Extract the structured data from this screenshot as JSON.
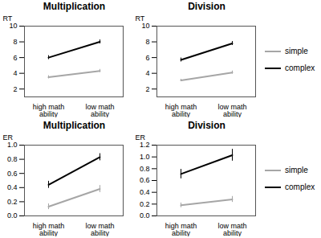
{
  "chart_data": [
    {
      "type": "line",
      "title": "Multiplication",
      "y_label": "RT",
      "categories": [
        "high math ability",
        "low math ability"
      ],
      "series": [
        {
          "name": "simple",
          "color": "#a6a6a6",
          "values": [
            3.5,
            4.3
          ],
          "errors": [
            0.2,
            0.2
          ]
        },
        {
          "name": "complex",
          "color": "#000000",
          "values": [
            6.0,
            8.0
          ],
          "errors": [
            0.25,
            0.25
          ]
        }
      ],
      "ylim": [
        1,
        10
      ],
      "yticks": [
        2,
        4,
        6,
        8,
        10
      ]
    },
    {
      "type": "line",
      "title": "Division",
      "y_label": "RT",
      "categories": [
        "high math ability",
        "low math ability"
      ],
      "series": [
        {
          "name": "simple",
          "color": "#a6a6a6",
          "values": [
            3.1,
            4.1
          ],
          "errors": [
            0.15,
            0.2
          ]
        },
        {
          "name": "complex",
          "color": "#000000",
          "values": [
            5.7,
            7.8
          ],
          "errors": [
            0.25,
            0.25
          ]
        }
      ],
      "ylim": [
        1,
        10
      ],
      "yticks": [
        2,
        4,
        6,
        8,
        10
      ],
      "legend": "right"
    },
    {
      "type": "line",
      "title": "Multiplication",
      "y_label": "ER",
      "categories": [
        "high math ability",
        "low math ability"
      ],
      "series": [
        {
          "name": "simple",
          "color": "#a6a6a6",
          "values": [
            0.13,
            0.38
          ],
          "errors": [
            0.04,
            0.05
          ]
        },
        {
          "name": "complex",
          "color": "#000000",
          "values": [
            0.44,
            0.83
          ],
          "errors": [
            0.05,
            0.05
          ]
        }
      ],
      "ylim": [
        0,
        1.0
      ],
      "yticks": [
        {
          "value": 0,
          "label": "0.0"
        },
        {
          "value": 0.2,
          "label": "0.2"
        },
        {
          "value": 0.4,
          "label": "0.4"
        },
        {
          "value": 0.6,
          "label": "0.6"
        },
        {
          "value": 0.8,
          "label": "0.8"
        },
        {
          "value": 1,
          "label": "1.0"
        }
      ]
    },
    {
      "type": "line",
      "title": "Division",
      "y_label": "ER",
      "categories": [
        "high math ability",
        "low math ability"
      ],
      "series": [
        {
          "name": "simple",
          "color": "#a6a6a6",
          "values": [
            0.18,
            0.28
          ],
          "errors": [
            0.04,
            0.05
          ]
        },
        {
          "name": "complex",
          "color": "#000000",
          "values": [
            0.71,
            1.03
          ],
          "errors": [
            0.08,
            0.1
          ]
        }
      ],
      "ylim": [
        0,
        1.2
      ],
      "yticks": [
        {
          "value": 0,
          "label": "0.0"
        },
        {
          "value": 0.2,
          "label": "0.2"
        },
        {
          "value": 0.4,
          "label": "0.4"
        },
        {
          "value": 0.6,
          "label": "0.6"
        },
        {
          "value": 0.8,
          "label": "0.8"
        },
        {
          "value": 1,
          "label": "1.0"
        },
        {
          "value": 1.2,
          "label": "1.2"
        }
      ],
      "legend": "right"
    }
  ]
}
